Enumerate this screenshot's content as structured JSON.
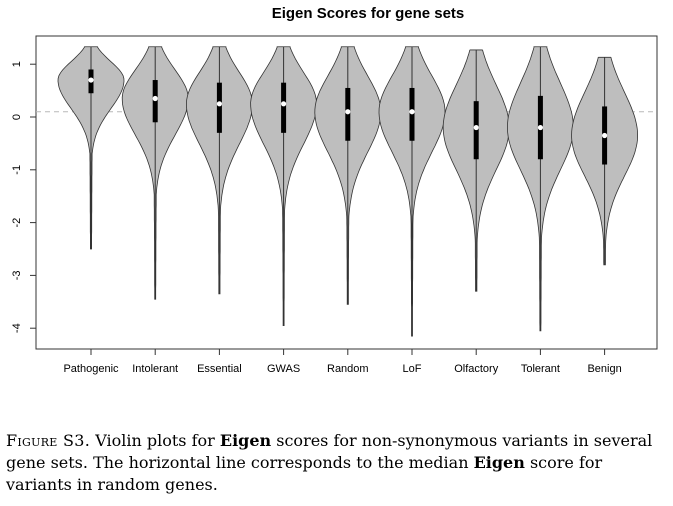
{
  "chart_data": {
    "type": "violin",
    "title": "Eigen Scores for gene sets",
    "xlabel": "",
    "ylabel": "",
    "ylim": [
      -4.4,
      1.45
    ],
    "yticks": [
      1,
      0,
      -1,
      -2,
      -3,
      -4
    ],
    "reference_line": {
      "y": 0.1,
      "style": "dashed"
    },
    "categories": [
      "Pathogenic",
      "Intolerant",
      "Essential",
      "GWAS",
      "Random",
      "LoF",
      "Olfactory",
      "Tolerant",
      "Benign"
    ],
    "groups": [
      {
        "name": "Pathogenic",
        "min": -2.5,
        "q1": 0.45,
        "median": 0.7,
        "q3": 0.9,
        "max": 1.33
      },
      {
        "name": "Intolerant",
        "min": -3.45,
        "q1": -0.1,
        "median": 0.35,
        "q3": 0.7,
        "max": 1.33
      },
      {
        "name": "Essential",
        "min": -3.35,
        "q1": -0.3,
        "median": 0.25,
        "q3": 0.65,
        "max": 1.33
      },
      {
        "name": "GWAS",
        "min": -3.95,
        "q1": -0.3,
        "median": 0.25,
        "q3": 0.65,
        "max": 1.33
      },
      {
        "name": "Random",
        "min": -3.55,
        "q1": -0.45,
        "median": 0.1,
        "q3": 0.55,
        "max": 1.33
      },
      {
        "name": "LoF",
        "min": -4.15,
        "q1": -0.45,
        "median": 0.1,
        "q3": 0.55,
        "max": 1.33
      },
      {
        "name": "Olfactory",
        "min": -3.3,
        "q1": -0.8,
        "median": -0.2,
        "q3": 0.3,
        "max": 1.27
      },
      {
        "name": "Tolerant",
        "min": -4.05,
        "q1": -0.8,
        "median": -0.2,
        "q3": 0.4,
        "max": 1.33
      },
      {
        "name": "Benign",
        "min": -2.8,
        "q1": -0.9,
        "median": -0.35,
        "q3": 0.2,
        "max": 1.13
      }
    ],
    "colors": {
      "violin_fill": "#bebebe",
      "violin_stroke": "#333333",
      "box": "#000000",
      "median_dot": "#ffffff",
      "reference_line": "#b8b8b8"
    }
  },
  "caption": {
    "label": "Figure S3.",
    "text_1": " Violin plots for ",
    "bold_1": "Eigen",
    "text_2": " scores for non-synonymous variants in several gene sets. The horizontal line corresponds to the median ",
    "bold_2": "Eigen",
    "text_3": " score for variants in random genes."
  }
}
